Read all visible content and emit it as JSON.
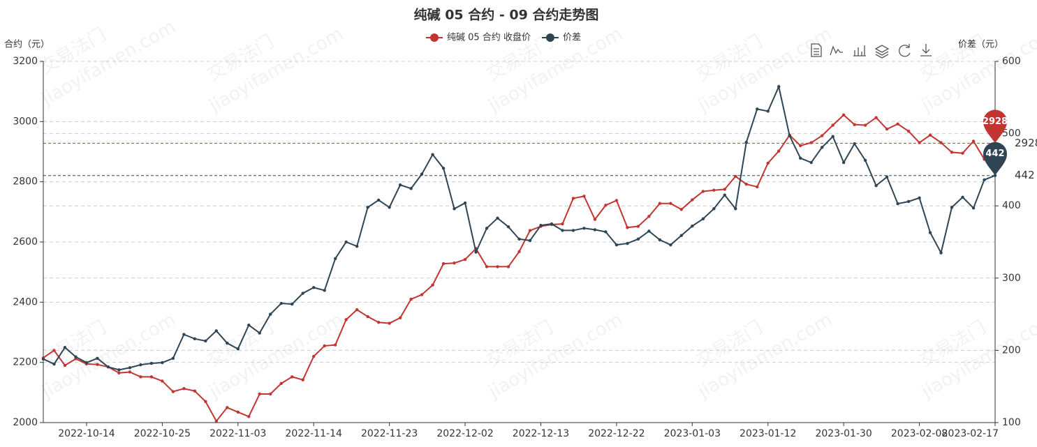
{
  "chart_data": {
    "type": "line",
    "title": "纯碱 05 合约 - 09 合约走势图",
    "y_label": "合约（元）",
    "y2_label": "价差（元）",
    "watermark": [
      "交易法门",
      "jiaoyifamen.com"
    ],
    "categories": [
      null,
      null,
      null,
      null,
      "2022-10-14",
      null,
      null,
      null,
      null,
      null,
      null,
      "2022-10-25",
      null,
      null,
      null,
      null,
      null,
      null,
      "2022-11-03",
      null,
      null,
      null,
      null,
      null,
      null,
      "2022-11-14",
      null,
      null,
      null,
      null,
      null,
      null,
      "2022-11-23",
      null,
      null,
      null,
      null,
      null,
      null,
      "2022-12-02",
      null,
      null,
      null,
      null,
      null,
      null,
      "2022-12-13",
      null,
      null,
      null,
      null,
      null,
      null,
      "2022-12-22",
      null,
      null,
      null,
      null,
      null,
      null,
      "2023-01-03",
      null,
      null,
      null,
      null,
      null,
      null,
      "2023-01-12",
      null,
      null,
      null,
      null,
      null,
      null,
      "2023-01-30",
      null,
      null,
      null,
      null,
      null,
      null,
      "2023-02-08",
      null,
      null,
      null,
      null,
      null,
      null,
      "2023-02-17"
    ],
    "series": [
      {
        "name": "纯碱 05 合约 收盘价",
        "color": "#c23531",
        "values": [
          2215,
          2240,
          2190,
          2212,
          2195,
          2193,
          2185,
          2165,
          2168,
          2152,
          2152,
          2138,
          2103,
          2113,
          2105,
          2070,
          2005,
          2050,
          2035,
          2020,
          2095,
          2095,
          2130,
          2152,
          2142,
          2220,
          2255,
          2258,
          2342,
          2375,
          2352,
          2333,
          2330,
          2348,
          2410,
          2425,
          2457,
          2528,
          2530,
          2542,
          2578,
          2518,
          2518,
          2518,
          2568,
          2638,
          2652,
          2658,
          2660,
          2745,
          2752,
          2675,
          2722,
          2738,
          2648,
          2652,
          2685,
          2728,
          2728,
          2708,
          2740,
          2768,
          2772,
          2775,
          2818,
          2792,
          2783,
          2862,
          2902,
          2955,
          2920,
          2930,
          2953,
          2988,
          3022,
          2990,
          2988,
          3013,
          2975,
          2992,
          2968,
          2930,
          2955,
          2930,
          2898,
          2895,
          2935,
          2875,
          2928
        ]
      },
      {
        "name": "价差",
        "color": "#2f4554",
        "axis": "y2",
        "values": [
          188,
          181,
          204,
          191,
          183,
          189,
          177,
          173,
          176,
          180,
          182,
          183,
          189,
          222,
          216,
          213,
          227,
          210,
          202,
          235,
          224,
          250,
          265,
          264,
          279,
          287,
          283,
          327,
          350,
          344,
          398,
          408,
          398,
          429,
          424,
          444,
          471,
          452,
          396,
          404,
          336,
          369,
          383,
          371,
          354,
          352,
          373,
          375,
          366,
          366,
          369,
          367,
          364,
          346,
          348,
          354,
          365,
          353,
          346,
          359,
          372,
          382,
          396,
          415,
          396,
          488,
          534,
          531,
          565,
          497,
          466,
          460,
          481,
          496,
          460,
          486,
          463,
          428,
          440,
          403,
          406,
          411,
          363,
          335,
          398,
          412,
          397,
          436,
          442
        ]
      }
    ],
    "ylim": [
      2000,
      3200
    ],
    "yticks": [
      2000,
      2200,
      2400,
      2600,
      2800,
      3000,
      3200
    ],
    "y2lim": [
      100,
      600
    ],
    "y2ticks": [
      100,
      200,
      300,
      400,
      500,
      600
    ],
    "grid": true
  }
}
